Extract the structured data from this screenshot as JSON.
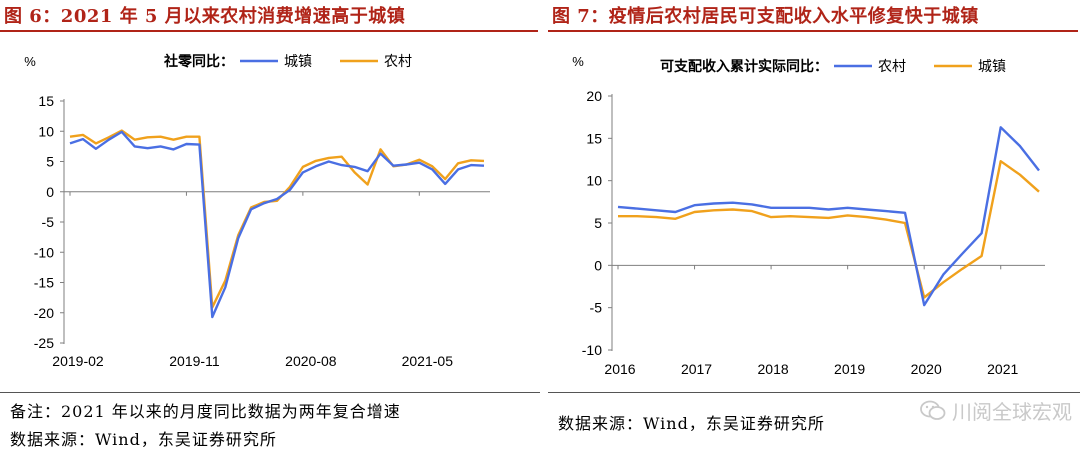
{
  "figures": [
    {
      "title": "图 6：2021 年 5 月以来农村消费增速高于城镇",
      "notes": [
        "备注：2021 年以来的月度同比数据为两年复合增速",
        "数据来源：Wind，东吴证券研究所"
      ]
    },
    {
      "title": "图 7：疫情后农村居民可支配收入水平修复快于城镇",
      "notes": [
        "数据来源：Wind，东吴证券研究所"
      ]
    }
  ],
  "watermark": "川阅全球宏观",
  "colors": {
    "blue": "#4a6fe3",
    "orange": "#f0a11c",
    "title_red": "#b02418"
  },
  "chart_data": [
    {
      "type": "line",
      "title": "",
      "unit_label": "%",
      "legend_title": "社零同比：",
      "legend_placement": "top",
      "xlabel": "",
      "ylabel": "",
      "ylim": [
        -25,
        15
      ],
      "yticks": [
        15,
        10,
        5,
        0,
        -5,
        -10,
        -15,
        -20,
        -25
      ],
      "x_tick_labels": [
        "2019-02",
        "2019-11",
        "2020-08",
        "2021-05"
      ],
      "x_tick_indices": [
        0,
        9,
        18,
        27
      ],
      "grid": false,
      "series": [
        {
          "name": "城镇",
          "color": "#4a6fe3",
          "values": [
            8.0,
            8.7,
            7.1,
            8.6,
            9.9,
            7.5,
            7.2,
            7.5,
            7.0,
            7.9,
            7.8,
            -20.7,
            -15.8,
            -7.7,
            -2.9,
            -1.9,
            -1.2,
            0.3,
            3.2,
            4.2,
            5.0,
            4.4,
            4.1,
            3.4,
            6.3,
            4.3,
            4.5,
            4.8,
            3.7,
            1.3,
            3.7,
            4.4,
            4.3
          ]
        },
        {
          "name": "农村",
          "color": "#f0a11c",
          "values": [
            9.1,
            9.4,
            8.0,
            9.0,
            10.1,
            8.6,
            9.0,
            9.1,
            8.6,
            9.1,
            9.1,
            -19.1,
            -14.7,
            -7.2,
            -2.6,
            -1.7,
            -1.5,
            0.8,
            4.1,
            5.1,
            5.6,
            5.8,
            3.2,
            1.2,
            7.0,
            4.2,
            4.5,
            5.3,
            4.2,
            2.1,
            4.7,
            5.2,
            5.1
          ]
        }
      ]
    },
    {
      "type": "line",
      "title": "",
      "unit_label": "%",
      "legend_title": "可支配收入累计实际同比：",
      "legend_placement": "top",
      "xlabel": "",
      "ylabel": "",
      "ylim": [
        -10,
        20
      ],
      "yticks": [
        20,
        15,
        10,
        5,
        0,
        -5,
        -10
      ],
      "x_tick_labels": [
        "2016",
        "2017",
        "2018",
        "2019",
        "2020",
        "2021"
      ],
      "x_tick_indices": [
        0,
        4,
        8,
        12,
        16,
        20
      ],
      "grid": false,
      "series": [
        {
          "name": "农村",
          "color": "#4a6fe3",
          "values": [
            6.9,
            6.7,
            6.5,
            6.3,
            7.1,
            7.3,
            7.4,
            7.2,
            6.8,
            6.8,
            6.8,
            6.6,
            6.8,
            6.6,
            6.4,
            6.2,
            -4.7,
            -1.1,
            1.4,
            3.8,
            16.3,
            14.1,
            11.2
          ]
        },
        {
          "name": "城镇",
          "color": "#f0a11c",
          "values": [
            5.8,
            5.8,
            5.7,
            5.5,
            6.3,
            6.5,
            6.6,
            6.4,
            5.7,
            5.8,
            5.7,
            5.6,
            5.9,
            5.7,
            5.4,
            5.0,
            -3.8,
            -2.0,
            -0.4,
            1.1,
            12.3,
            10.7,
            8.7
          ]
        }
      ]
    }
  ]
}
